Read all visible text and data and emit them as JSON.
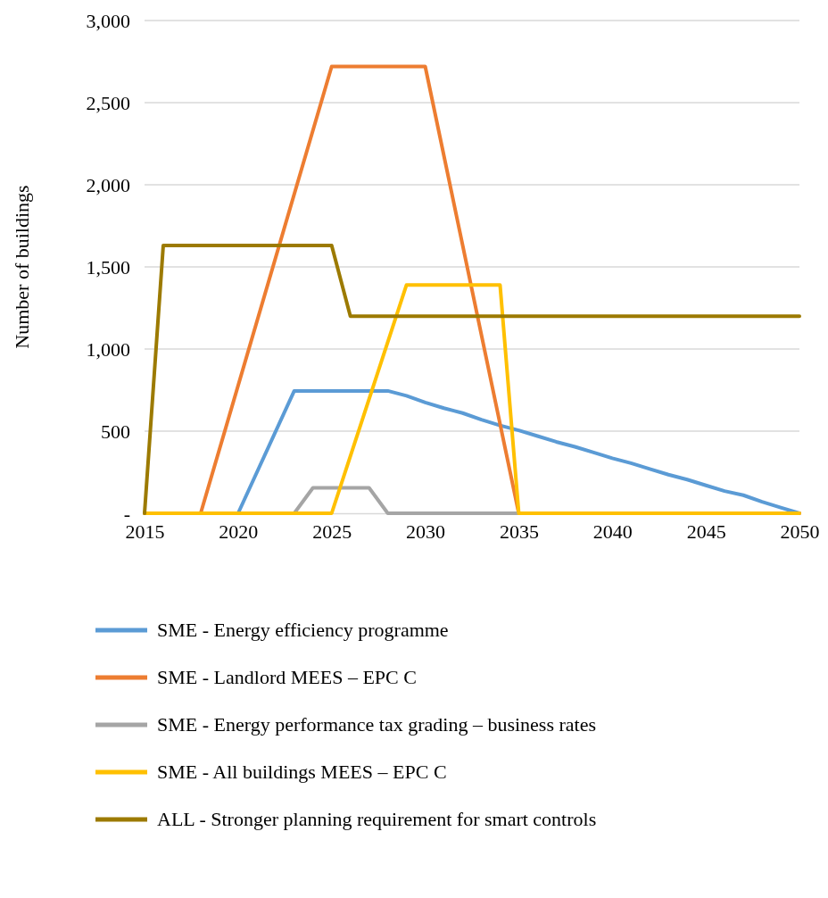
{
  "chart_data": {
    "type": "line",
    "ylabel": "Number of buildings",
    "xlim": [
      2015,
      2050
    ],
    "xticks": [
      2015,
      2020,
      2025,
      2030,
      2035,
      2040,
      2045,
      2050
    ],
    "ylim": [
      0,
      3000
    ],
    "yticks": [
      {
        "value": 0,
        "label": "-"
      },
      {
        "value": 500,
        "label": "500"
      },
      {
        "value": 1000,
        "label": "1,000"
      },
      {
        "value": 1500,
        "label": "1,500"
      },
      {
        "value": 2000,
        "label": "2,000"
      },
      {
        "value": 2500,
        "label": "2,500"
      },
      {
        "value": 3000,
        "label": "3,000"
      }
    ],
    "grid": "y",
    "legend": "bottom",
    "marker": "none",
    "line_style": "solid",
    "series": [
      {
        "name": "SME - Energy efficiency programme",
        "color": "#5b9bd5",
        "x": [
          2015,
          2020,
          2023,
          2028,
          2029,
          2030,
          2031,
          2032,
          2033,
          2034,
          2035,
          2036,
          2037,
          2038,
          2039,
          2040,
          2041,
          2042,
          2043,
          2044,
          2045,
          2046,
          2047,
          2048,
          2049,
          2050
        ],
        "values": [
          0,
          0,
          745,
          745,
          715,
          675,
          640,
          610,
          570,
          535,
          505,
          470,
          435,
          405,
          370,
          335,
          305,
          270,
          235,
          205,
          170,
          135,
          110,
          70,
          35,
          0
        ]
      },
      {
        "name": "SME - Landlord MEES – EPC C",
        "color": "#ed7d31",
        "x": [
          2015,
          2018,
          2025,
          2030,
          2035,
          2050
        ],
        "values": [
          0,
          0,
          2720,
          2720,
          0,
          0
        ]
      },
      {
        "name": "SME - Energy performance tax grading – business rates",
        "color": "#a5a5a5",
        "x": [
          2015,
          2023,
          2024,
          2027,
          2028,
          2035
        ],
        "values": [
          0,
          0,
          155,
          155,
          0,
          0
        ]
      },
      {
        "name": "SME - All buildings MEES – EPC C",
        "color": "#ffc000",
        "x": [
          2015,
          2025,
          2029,
          2034,
          2035,
          2050
        ],
        "values": [
          0,
          0,
          1390,
          1390,
          0,
          0
        ]
      },
      {
        "name": "ALL - Stronger planning requirement for smart controls",
        "color": "#9c7a00",
        "x": [
          2015,
          2016,
          2025,
          2026,
          2050
        ],
        "values": [
          0,
          1630,
          1630,
          1200,
          1200
        ]
      }
    ]
  }
}
